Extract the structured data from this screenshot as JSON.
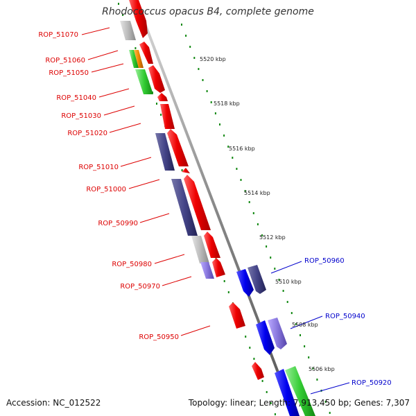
{
  "title": "Rhodococcus opacus B4, complete genome",
  "footer": {
    "accession": "Accession: NC_012522",
    "summary": "Topology: linear; Length: 7,913,450 bp; Genes: 7,307"
  },
  "colors": {
    "rev_label": "#dd0000",
    "fwd_label": "#0000cc",
    "axis": "#888888",
    "tick_dots": "#118811",
    "red": "#ee0000",
    "grey": "#bbbbbb",
    "green": "#33cc33",
    "orange": "#ee8800",
    "navy": "#444488",
    "blue": "#0000ee",
    "lavender": "#8877dd"
  },
  "scale": [
    {
      "label": "5520 kbp"
    },
    {
      "label": "5518 kbp"
    },
    {
      "label": "5516 kbp"
    },
    {
      "label": "5514 kbp"
    },
    {
      "label": "5512 kbp"
    },
    {
      "label": "5510 kbp"
    },
    {
      "label": "5508 kbp"
    },
    {
      "label": "5506 kbp"
    }
  ],
  "genes_reverse": [
    {
      "label": "ROP_51070"
    },
    {
      "label": "ROP_51060"
    },
    {
      "label": "ROP_51050"
    },
    {
      "label": "ROP_51040"
    },
    {
      "label": "ROP_51030"
    },
    {
      "label": "ROP_51020"
    },
    {
      "label": "ROP_51010"
    },
    {
      "label": "ROP_51000"
    },
    {
      "label": "ROP_50990"
    },
    {
      "label": "ROP_50980"
    },
    {
      "label": "ROP_50970"
    },
    {
      "label": "ROP_50950"
    }
  ],
  "genes_forward": [
    {
      "label": "ROP_50960"
    },
    {
      "label": "ROP_50940"
    },
    {
      "label": "ROP_50920"
    }
  ]
}
